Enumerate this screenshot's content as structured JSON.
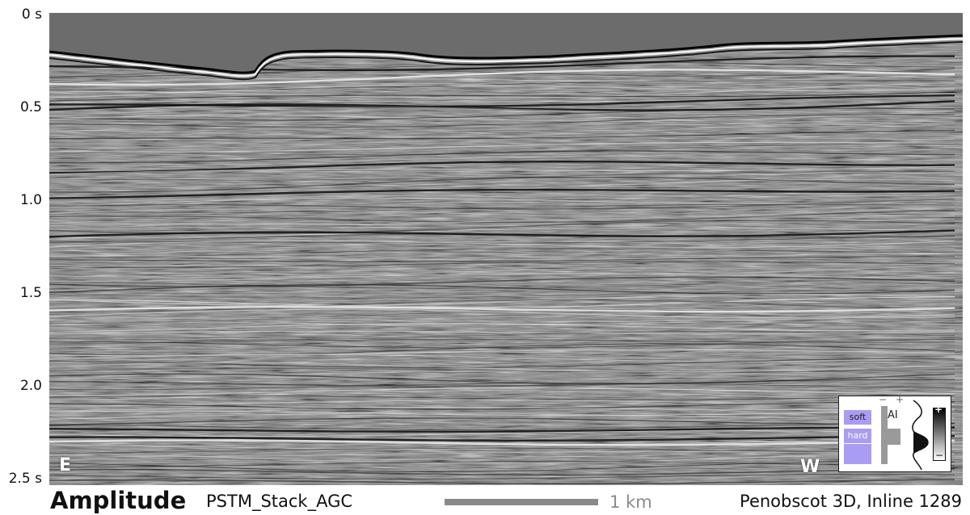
{
  "time_axis": {
    "labels": [
      "0 s",
      "0.5",
      "1.0",
      "1.5",
      "2.0",
      "2.5 s"
    ]
  },
  "section": {
    "direction_left": "E",
    "direction_right": "W"
  },
  "legend": {
    "soft_label": "soft",
    "hard_label": "hard",
    "ai_label": "AI",
    "ai_minus": "−",
    "ai_plus": "+",
    "scale_plus": "+",
    "scale_minus": "−",
    "chip_color": "#a99cf3"
  },
  "footer": {
    "attribute": "Amplitude",
    "dataset": "PSTM_Stack_AGC",
    "scale_bar_label": "1 km",
    "survey": "Penobscot 3D, Inline 1289"
  }
}
